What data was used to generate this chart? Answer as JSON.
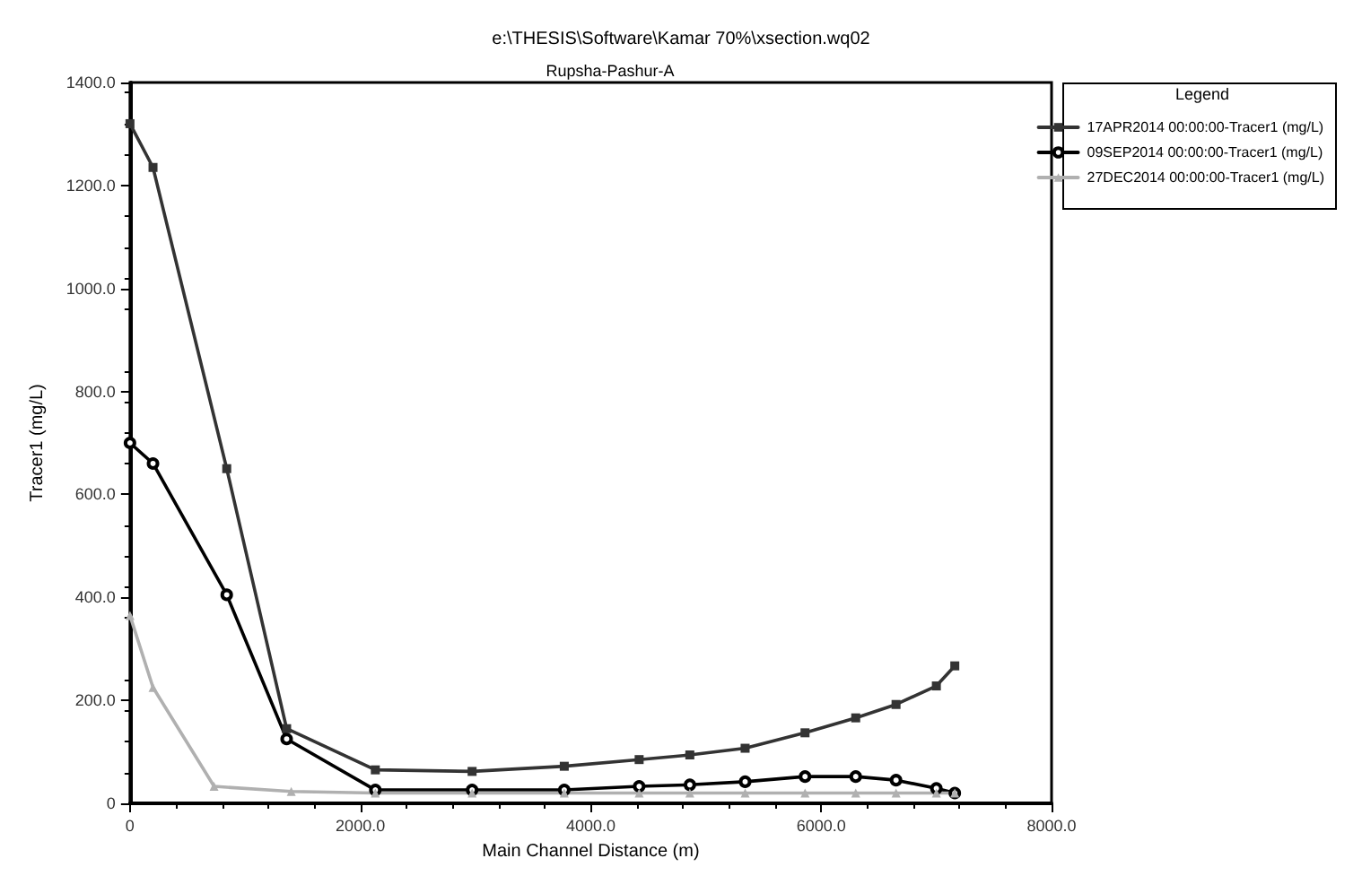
{
  "chart_data": {
    "type": "line",
    "title": "e:\\THESIS\\Software\\Kamar 70%\\xsection.wq02",
    "subtitle": "Rupsha-Pashur-A",
    "xlabel": "Main Channel Distance (m)",
    "ylabel": "Tracer1 (mg/L)",
    "legend_title": "Legend",
    "legend": "right",
    "grid": false,
    "xlim": [
      0,
      8000
    ],
    "xticks": [
      0,
      {
        "value": 2000,
        "label": "2000.0"
      },
      {
        "value": 4000,
        "label": "4000.0"
      },
      {
        "value": 6000,
        "label": "6000.0"
      },
      {
        "value": 8000,
        "label": "8000.0"
      }
    ],
    "ylim": [
      0,
      1400
    ],
    "yticks": [
      0,
      {
        "value": 200,
        "label": "200.0"
      },
      {
        "value": 400,
        "label": "400.0"
      },
      {
        "value": 600,
        "label": "600.0"
      },
      {
        "value": 800,
        "label": "800.0"
      },
      {
        "value": 1000,
        "label": "1000.0"
      },
      {
        "value": 1200,
        "label": "1200.0"
      },
      {
        "value": 1400,
        "label": "1400.0"
      }
    ],
    "series": [
      {
        "name": "17APR2014 00:00:00-Tracer1 (mg/L)",
        "color": "#333333",
        "marker": "square",
        "x": [
          0,
          200,
          840,
          1360,
          2130,
          2970,
          3770,
          4420,
          4860,
          5340,
          5860,
          6300,
          6650,
          7000,
          7160
        ],
        "values": [
          1320,
          1235,
          650,
          145,
          65,
          62,
          72,
          85,
          94,
          107,
          137,
          166,
          192,
          228,
          267
        ]
      },
      {
        "name": "09SEP2014 00:00:00-Tracer1 (mg/L)",
        "color": "#000000",
        "marker": "circle",
        "x": [
          0,
          200,
          840,
          1360,
          2130,
          2970,
          3770,
          4420,
          4860,
          5340,
          5860,
          6300,
          6650,
          7000,
          7160
        ],
        "values": [
          700,
          660,
          405,
          125,
          26,
          26,
          26,
          33,
          36,
          42,
          52,
          52,
          45,
          29,
          20
        ]
      },
      {
        "name": "27DEC2014 00:00:00-Tracer1 (mg/L)",
        "color": "#b0b0b0",
        "marker": "triangle",
        "x": [
          0,
          200,
          730,
          1400,
          2130,
          2970,
          3770,
          4420,
          4860,
          5340,
          5860,
          6300,
          6650,
          7000,
          7160
        ],
        "values": [
          365,
          225,
          33,
          23,
          20,
          20,
          20,
          20,
          20,
          20,
          20,
          20,
          20,
          20,
          20
        ]
      }
    ]
  }
}
